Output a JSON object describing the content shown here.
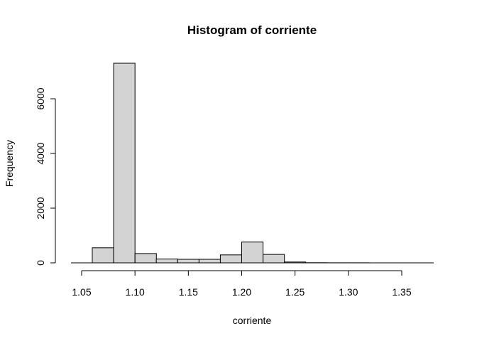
{
  "chart_data": {
    "type": "bar",
    "title": "Histogram of corriente",
    "xlabel": "corriente",
    "ylabel": "Frequency",
    "xlim": [
      1.05,
      1.38
    ],
    "ylim": [
      0,
      7300
    ],
    "x_ticks": [
      1.05,
      1.1,
      1.15,
      1.2,
      1.25,
      1.3,
      1.35
    ],
    "x_tick_labels": [
      "1.05",
      "1.10",
      "1.15",
      "1.20",
      "1.25",
      "1.30",
      "1.35"
    ],
    "y_ticks": [
      0,
      2000,
      4000,
      6000
    ],
    "y_tick_labels": [
      "0",
      "2000",
      "4000",
      "6000"
    ],
    "bins": [
      {
        "start": 1.04,
        "end": 1.06,
        "count": 0
      },
      {
        "start": 1.06,
        "end": 1.08,
        "count": 550
      },
      {
        "start": 1.08,
        "end": 1.1,
        "count": 7300
      },
      {
        "start": 1.1,
        "end": 1.12,
        "count": 340
      },
      {
        "start": 1.12,
        "end": 1.14,
        "count": 140
      },
      {
        "start": 1.14,
        "end": 1.16,
        "count": 130
      },
      {
        "start": 1.16,
        "end": 1.18,
        "count": 130
      },
      {
        "start": 1.18,
        "end": 1.2,
        "count": 290
      },
      {
        "start": 1.2,
        "end": 1.22,
        "count": 760
      },
      {
        "start": 1.22,
        "end": 1.24,
        "count": 310
      },
      {
        "start": 1.24,
        "end": 1.26,
        "count": 30
      },
      {
        "start": 1.26,
        "end": 1.28,
        "count": 5
      },
      {
        "start": 1.28,
        "end": 1.3,
        "count": 3
      },
      {
        "start": 1.3,
        "end": 1.32,
        "count": 2
      },
      {
        "start": 1.32,
        "end": 1.34,
        "count": 1
      },
      {
        "start": 1.34,
        "end": 1.36,
        "count": 1
      },
      {
        "start": 1.36,
        "end": 1.38,
        "count": 1
      }
    ],
    "fill_color": "#d3d3d3",
    "edge_color": "#000000",
    "grid": false,
    "legend": "none"
  }
}
